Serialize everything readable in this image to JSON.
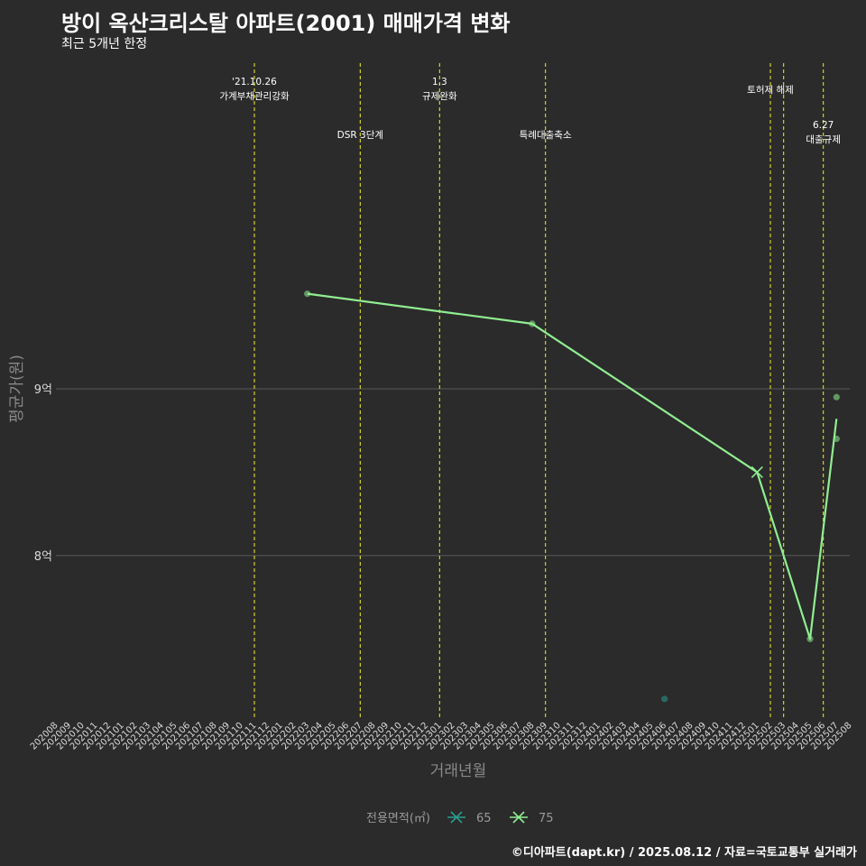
{
  "title": "방이 옥산크리스탈 아파트(2001) 매매가격 변화",
  "subtitle": "최근 5개년 한정",
  "caption": "©디아파트(dapt.kr) / 2025.08.12 / 자료=국토교통부 실거래가",
  "colors": {
    "background": "#2b2b2b",
    "gridline": "#5a5a5a",
    "event_line": "#e2e21a",
    "series_65": "#2a9d8f",
    "series_75": "#90ee90"
  },
  "chart_data": {
    "type": "line",
    "xlabel": "거래년월",
    "ylabel": "평균가(원)",
    "y_unit_label": "억",
    "ylim": [
      7.02,
      10.98
    ],
    "y_ticks": [
      {
        "value": 8,
        "label": "8억"
      },
      {
        "value": 9,
        "label": "9억"
      }
    ],
    "x_categories": [
      "202008",
      "202009",
      "202010",
      "202011",
      "202012",
      "202101",
      "202102",
      "202103",
      "202104",
      "202105",
      "202106",
      "202107",
      "202108",
      "202109",
      "202110",
      "202111",
      "202112",
      "202201",
      "202202",
      "202203",
      "202204",
      "202205",
      "202206",
      "202207",
      "202208",
      "202209",
      "202210",
      "202211",
      "202212",
      "202301",
      "202302",
      "202303",
      "202304",
      "202305",
      "202306",
      "202307",
      "202308",
      "202309",
      "202310",
      "202311",
      "202312",
      "202401",
      "202402",
      "202403",
      "202404",
      "202405",
      "202406",
      "202407",
      "202408",
      "202409",
      "202410",
      "202411",
      "202412",
      "202501",
      "202502",
      "202503",
      "202504",
      "202505",
      "202506",
      "202507",
      "202508"
    ],
    "events": [
      {
        "x": "202111",
        "label_lines": [
          "'21.10.26",
          "가계부채관리강화"
        ],
        "label_row": 0
      },
      {
        "x": "202207",
        "label_lines": [
          "DSR 3단계"
        ],
        "label_row": 2
      },
      {
        "x": "202301",
        "label_lines": [
          "1.3",
          "규제완화"
        ],
        "label_row": 0
      },
      {
        "x": "202309",
        "label_lines": [
          "특례대출축소"
        ],
        "label_row": 2
      },
      {
        "x": "202502",
        "label_lines": [
          "토허제 해제"
        ],
        "label_row": 1
      },
      {
        "x": "202503",
        "label_lines": [],
        "label_row": 1
      },
      {
        "x": "202506",
        "label_lines": [
          "6.27",
          "대출규제"
        ],
        "label_row": 3
      }
    ],
    "legend_title": "전용면적(㎡)",
    "series": [
      {
        "name": "65",
        "line": [],
        "x_markers": [],
        "points": [
          {
            "x": "202406",
            "y": 7.14
          }
        ]
      },
      {
        "name": "75",
        "line": [
          {
            "x": "202203",
            "y": 9.57
          },
          {
            "x": "202308",
            "y": 9.39
          },
          {
            "x": "202501",
            "y": 8.5
          },
          {
            "x": "202505",
            "y": 7.5
          },
          {
            "x": "202507",
            "y": 8.82
          }
        ],
        "x_markers": [
          {
            "x": "202501",
            "y": 8.5
          }
        ],
        "points": [
          {
            "x": "202203",
            "y": 9.57
          },
          {
            "x": "202308",
            "y": 9.39
          },
          {
            "x": "202505",
            "y": 7.5
          },
          {
            "x": "202507",
            "y": 8.95
          },
          {
            "x": "202507",
            "y": 8.7
          }
        ]
      }
    ]
  }
}
